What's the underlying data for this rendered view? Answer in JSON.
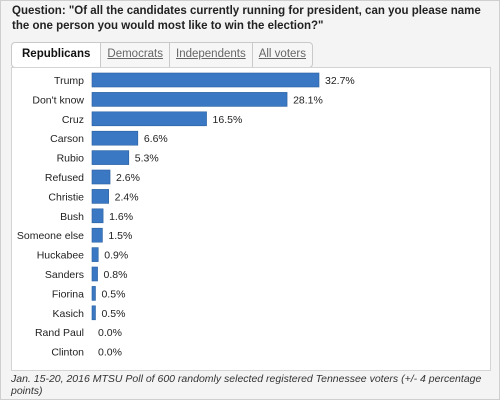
{
  "question": "Question: \"Of all the candidates currently running for president, can you please name the one person you would most like to win the election?\"",
  "tabs": [
    {
      "label": "Republicans",
      "active": true
    },
    {
      "label": "Democrats",
      "active": false
    },
    {
      "label": "Independents",
      "active": false
    },
    {
      "label": "All voters",
      "active": false
    }
  ],
  "footnote": "Jan. 15-20, 2016 MTSU Poll of 600 randomly selected registered Tennessee voters (+/- 4 percentage points)",
  "colors": {
    "bar": "#3b78c3",
    "bar_border": "#2a5f9f"
  },
  "chart_data": {
    "type": "bar",
    "orientation": "horizontal",
    "categories": [
      "Trump",
      "Don't know",
      "Cruz",
      "Carson",
      "Rubio",
      "Refused",
      "Christie",
      "Bush",
      "Someone else",
      "Huckabee",
      "Sanders",
      "Fiorina",
      "Kasich",
      "Rand Paul",
      "Clinton"
    ],
    "values": [
      32.7,
      28.1,
      16.5,
      6.6,
      5.3,
      2.6,
      2.4,
      1.6,
      1.5,
      0.9,
      0.8,
      0.5,
      0.5,
      0.0,
      0.0
    ],
    "labels": [
      "32.7%",
      "28.1%",
      "16.5%",
      "6.6%",
      "5.3%",
      "2.6%",
      "2.4%",
      "1.6%",
      "1.5%",
      "0.9%",
      "0.8%",
      "0.5%",
      "0.5%",
      "0.0%",
      "0.0%"
    ],
    "title": "",
    "xlabel": "",
    "ylabel": "",
    "xlim": [
      0,
      32.7
    ],
    "grid": false,
    "legend": "none"
  }
}
